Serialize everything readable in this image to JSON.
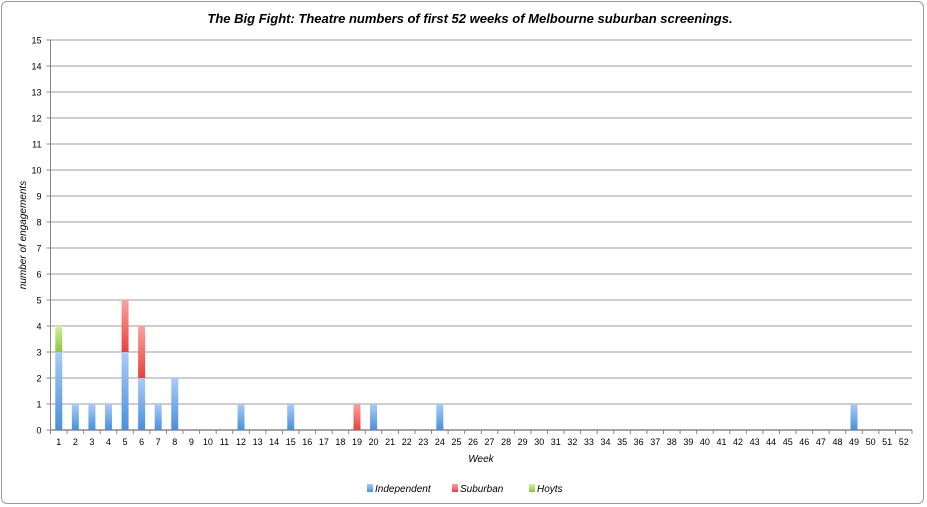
{
  "chart_data": {
    "type": "bar",
    "stacked": true,
    "title": "The Big Fight: Theatre numbers of first 52 weeks of Melbourne suburban screenings.",
    "xlabel": "Week",
    "ylabel": "number of engagements",
    "ylim": [
      0,
      15
    ],
    "yticks": [
      0,
      1,
      2,
      3,
      4,
      5,
      6,
      7,
      8,
      9,
      10,
      11,
      12,
      13,
      14,
      15
    ],
    "grid": true,
    "legend_position": "bottom",
    "categories": [
      "1",
      "2",
      "3",
      "4",
      "5",
      "6",
      "7",
      "8",
      "9",
      "10",
      "11",
      "12",
      "13",
      "14",
      "15",
      "16",
      "17",
      "18",
      "19",
      "20",
      "21",
      "22",
      "23",
      "24",
      "25",
      "26",
      "27",
      "28",
      "29",
      "30",
      "31",
      "32",
      "33",
      "34",
      "35",
      "36",
      "37",
      "38",
      "39",
      "40",
      "41",
      "42",
      "43",
      "44",
      "45",
      "46",
      "47",
      "48",
      "49",
      "50",
      "51",
      "52"
    ],
    "series": [
      {
        "name": "Independent",
        "color": "#4a8fdc",
        "light": "#a9ccf7",
        "values": [
          3,
          1,
          1,
          1,
          3,
          2,
          1,
          2,
          0,
          0,
          0,
          1,
          0,
          0,
          1,
          0,
          0,
          0,
          0,
          1,
          0,
          0,
          0,
          1,
          0,
          0,
          0,
          0,
          0,
          0,
          0,
          0,
          0,
          0,
          0,
          0,
          0,
          0,
          0,
          0,
          0,
          0,
          0,
          0,
          0,
          0,
          0,
          0,
          1,
          0,
          0,
          0
        ]
      },
      {
        "name": "Suburban",
        "color": "#e8413c",
        "light": "#f9a3a0",
        "values": [
          0,
          0,
          0,
          0,
          2,
          2,
          0,
          0,
          0,
          0,
          0,
          0,
          0,
          0,
          0,
          0,
          0,
          0,
          1,
          0,
          0,
          0,
          0,
          0,
          0,
          0,
          0,
          0,
          0,
          0,
          0,
          0,
          0,
          0,
          0,
          0,
          0,
          0,
          0,
          0,
          0,
          0,
          0,
          0,
          0,
          0,
          0,
          0,
          0,
          0,
          0,
          0
        ]
      },
      {
        "name": "Hoyts",
        "color": "#8cc63f",
        "light": "#d3ef9e",
        "values": [
          1,
          0,
          0,
          0,
          0,
          0,
          0,
          0,
          0,
          0,
          0,
          0,
          0,
          0,
          0,
          0,
          0,
          0,
          0,
          0,
          0,
          0,
          0,
          0,
          0,
          0,
          0,
          0,
          0,
          0,
          0,
          0,
          0,
          0,
          0,
          0,
          0,
          0,
          0,
          0,
          0,
          0,
          0,
          0,
          0,
          0,
          0,
          0,
          0,
          0,
          0,
          0
        ]
      }
    ]
  }
}
